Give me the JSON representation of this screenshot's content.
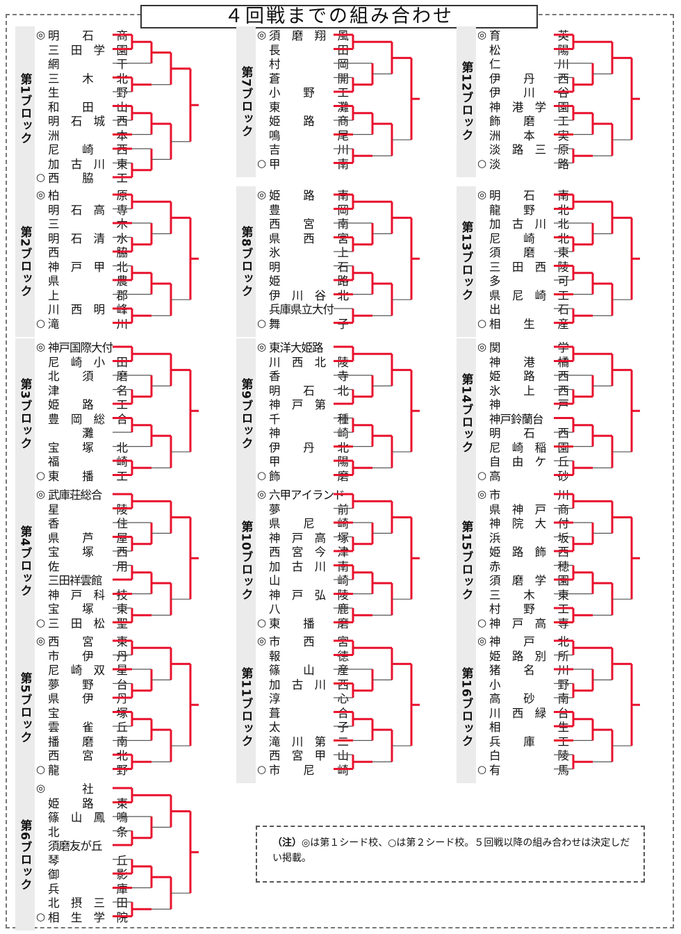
{
  "title": "４回戦までの組み合わせ",
  "note": {
    "head": "（注）",
    "text": "◎は第１シード校、○は第２シード校。５回戦以降の組み合わせは決定しだい掲載。"
  },
  "blocks": [
    {
      "label": "第1ブロック",
      "teams": [
        {
          "seed": "◎",
          "name": "明石商",
          "win": 1
        },
        {
          "seed": "",
          "name": "三田学園",
          "win": 1
        },
        {
          "seed": "",
          "name": "網干",
          "win": 0
        },
        {
          "seed": "",
          "name": "三木北",
          "win": 1
        },
        {
          "seed": "",
          "name": "生野",
          "win": 0
        },
        {
          "seed": "",
          "name": "和田山",
          "win": 1
        },
        {
          "seed": "",
          "name": "明石城西",
          "win": 0
        },
        {
          "seed": "",
          "name": "洲本",
          "win": 1
        },
        {
          "seed": "",
          "name": "尼崎西",
          "win": 1
        },
        {
          "seed": "",
          "name": "加古川東",
          "win": 0
        },
        {
          "seed": "○",
          "name": "西脇工",
          "win": 1
        }
      ]
    },
    {
      "label": "第2ブロック",
      "teams": [
        {
          "seed": "◎",
          "name": "柏原",
          "win": 1
        },
        {
          "seed": "",
          "name": "明石高専",
          "win": 0
        },
        {
          "seed": "",
          "name": "三木",
          "win": 1
        },
        {
          "seed": "",
          "name": "明石清水",
          "win": 0
        },
        {
          "seed": "",
          "name": "西脇",
          "win": 1
        },
        {
          "seed": "",
          "name": "神戸甲北",
          "win": 0
        },
        {
          "seed": "",
          "name": "県農",
          "win": 1
        },
        {
          "seed": "",
          "name": "上郡",
          "win": 0
        },
        {
          "seed": "",
          "name": "川西明峰",
          "win": 1
        },
        {
          "seed": "○",
          "name": "滝川",
          "win": 1
        }
      ]
    },
    {
      "label": "第3ブロック",
      "teams": [
        {
          "seed": "◎",
          "name": "神戸国際大付",
          "win": 1
        },
        {
          "seed": "",
          "name": "尼崎小田",
          "win": 1
        },
        {
          "seed": "",
          "name": "北須磨",
          "win": 0
        },
        {
          "seed": "",
          "name": "津名",
          "win": 0
        },
        {
          "seed": "",
          "name": "姫路工",
          "win": 1
        },
        {
          "seed": "",
          "name": "豊岡総合",
          "win": 1
        },
        {
          "seed": "",
          "name": "灘",
          "win": 0
        },
        {
          "seed": "",
          "name": "宝塚北",
          "win": 0
        },
        {
          "seed": "",
          "name": "福崎",
          "win": 1
        },
        {
          "seed": "○",
          "name": "東播工",
          "win": 1
        }
      ]
    },
    {
      "label": "第4ブロック",
      "teams": [
        {
          "seed": "◎",
          "name": "武庫荘総合",
          "win": 1
        },
        {
          "seed": "",
          "name": "星陵",
          "win": 1
        },
        {
          "seed": "",
          "name": "香住",
          "win": 0
        },
        {
          "seed": "",
          "name": "県芦屋",
          "win": 1
        },
        {
          "seed": "",
          "name": "宝塚西",
          "win": 0
        },
        {
          "seed": "",
          "name": "佐用",
          "win": 0
        },
        {
          "seed": "",
          "name": "三田祥雲館",
          "win": 1
        },
        {
          "seed": "",
          "name": "神戸科技",
          "win": 1
        },
        {
          "seed": "",
          "name": "宝塚東",
          "win": 0
        },
        {
          "seed": "○",
          "name": "三田松聖",
          "win": 1
        }
      ]
    },
    {
      "label": "第5ブロック",
      "teams": [
        {
          "seed": "◎",
          "name": "西宮東",
          "win": 1
        },
        {
          "seed": "",
          "name": "市伊丹",
          "win": 0
        },
        {
          "seed": "",
          "name": "尼崎双星",
          "win": 1
        },
        {
          "seed": "",
          "name": "夢野台",
          "win": 0
        },
        {
          "seed": "",
          "name": "県伊丹",
          "win": 1
        },
        {
          "seed": "",
          "name": "宝塚",
          "win": 1
        },
        {
          "seed": "",
          "name": "雲雀丘",
          "win": 0
        },
        {
          "seed": "",
          "name": "播磨南",
          "win": 0
        },
        {
          "seed": "",
          "name": "西宮北",
          "win": 1
        },
        {
          "seed": "○",
          "name": "龍野",
          "win": 1
        }
      ]
    },
    {
      "label": "第6ブロック",
      "teams": [
        {
          "seed": "◎",
          "name": "社",
          "win": 1
        },
        {
          "seed": "",
          "name": "姫路東",
          "win": 1
        },
        {
          "seed": "",
          "name": "篠山鳳鳴",
          "win": 0
        },
        {
          "seed": "",
          "name": "北条",
          "win": 0
        },
        {
          "seed": "",
          "name": "須磨友が丘",
          "win": 1
        },
        {
          "seed": "",
          "name": "琴丘",
          "win": 0
        },
        {
          "seed": "",
          "name": "御影",
          "win": 1
        },
        {
          "seed": "",
          "name": "兵庫",
          "win": 1
        },
        {
          "seed": "",
          "name": "北摂三田",
          "win": 0
        },
        {
          "seed": "○",
          "name": "相生学院",
          "win": 1
        }
      ]
    },
    {
      "label": "第7ブロック",
      "teams": [
        {
          "seed": "◎",
          "name": "須磨翔風",
          "win": 1
        },
        {
          "seed": "",
          "name": "長田",
          "win": 1
        },
        {
          "seed": "",
          "name": "村岡",
          "win": 0
        },
        {
          "seed": "",
          "name": "蒼開",
          "win": 0
        },
        {
          "seed": "",
          "name": "小野工",
          "win": 1
        },
        {
          "seed": "",
          "name": "東灘",
          "win": 1
        },
        {
          "seed": "",
          "name": "姫路商",
          "win": 0
        },
        {
          "seed": "",
          "name": "鳴尾",
          "win": 1
        },
        {
          "seed": "",
          "name": "吉川",
          "win": 0
        },
        {
          "seed": "○",
          "name": "甲南",
          "win": 1
        }
      ]
    },
    {
      "label": "第8ブロック",
      "teams": [
        {
          "seed": "◎",
          "name": "姫路南",
          "win": 1
        },
        {
          "seed": "",
          "name": "豊岡",
          "win": 1
        },
        {
          "seed": "",
          "name": "西宮南",
          "win": 0
        },
        {
          "seed": "",
          "name": "県西宮",
          "win": 1
        },
        {
          "seed": "",
          "name": "氷上",
          "win": 0
        },
        {
          "seed": "",
          "name": "明石",
          "win": 0
        },
        {
          "seed": "",
          "name": "姫路",
          "win": 1
        },
        {
          "seed": "",
          "name": "伊川谷北",
          "win": 1
        },
        {
          "seed": "",
          "name": "兵庫県立大付",
          "win": 0
        },
        {
          "seed": "○",
          "name": "舞子",
          "win": 1
        }
      ]
    },
    {
      "label": "第9ブロック",
      "teams": [
        {
          "seed": "◎",
          "name": "東洋大姫路",
          "win": 1
        },
        {
          "seed": "",
          "name": "川西北陵",
          "win": 1
        },
        {
          "seed": "",
          "name": "香寺",
          "win": 0
        },
        {
          "seed": "",
          "name": "明石北",
          "win": 0
        },
        {
          "seed": "",
          "name": "神戸第一",
          "win": 1
        },
        {
          "seed": "",
          "name": "千種",
          "win": 0
        },
        {
          "seed": "",
          "name": "神崎",
          "win": 0
        },
        {
          "seed": "",
          "name": "伊丹北",
          "win": 1
        },
        {
          "seed": "",
          "name": "甲陽",
          "win": 1
        },
        {
          "seed": "○",
          "name": "飾磨",
          "win": 1
        }
      ]
    },
    {
      "label": "第10ブロック",
      "teams": [
        {
          "seed": "◎",
          "name": "六甲アイランド",
          "win": 1
        },
        {
          "seed": "",
          "name": "夢前",
          "win": 0
        },
        {
          "seed": "",
          "name": "県尼崎",
          "win": 1
        },
        {
          "seed": "",
          "name": "神戸高塚",
          "win": 0
        },
        {
          "seed": "",
          "name": "西宮今津",
          "win": 1
        },
        {
          "seed": "",
          "name": "加古川南",
          "win": 1
        },
        {
          "seed": "",
          "name": "山崎",
          "win": 0
        },
        {
          "seed": "",
          "name": "神戸弘陵",
          "win": 1
        },
        {
          "seed": "",
          "name": "八鹿",
          "win": 0
        },
        {
          "seed": "○",
          "name": "東播磨",
          "win": 1
        }
      ]
    },
    {
      "label": "第11ブロック",
      "teams": [
        {
          "seed": "◎",
          "name": "市西宮",
          "win": 1
        },
        {
          "seed": "",
          "name": "報徳",
          "win": 1
        },
        {
          "seed": "",
          "name": "篠山産",
          "win": 0
        },
        {
          "seed": "",
          "name": "加古川西",
          "win": 1
        },
        {
          "seed": "",
          "name": "淳心",
          "win": 0
        },
        {
          "seed": "",
          "name": "葺合",
          "win": 1
        },
        {
          "seed": "",
          "name": "太子",
          "win": 0
        },
        {
          "seed": "",
          "name": "滝川第二",
          "win": 1
        },
        {
          "seed": "",
          "name": "西宮甲山",
          "win": 0
        },
        {
          "seed": "○",
          "name": "市尼崎",
          "win": 1
        }
      ]
    },
    {
      "label": "第12ブロック",
      "teams": [
        {
          "seed": "◎",
          "name": "育英",
          "win": 1
        },
        {
          "seed": "",
          "name": "松陽",
          "win": 1
        },
        {
          "seed": "",
          "name": "仁川",
          "win": 0
        },
        {
          "seed": "",
          "name": "伊丹西",
          "win": 0
        },
        {
          "seed": "",
          "name": "伊川谷",
          "win": 1
        },
        {
          "seed": "",
          "name": "神港学園",
          "win": 1
        },
        {
          "seed": "",
          "name": "飾磨工",
          "win": 0
        },
        {
          "seed": "",
          "name": "洲本実",
          "win": 1
        },
        {
          "seed": "",
          "name": "淡路三原",
          "win": 0
        },
        {
          "seed": "○",
          "name": "淡路",
          "win": 0
        }
      ]
    },
    {
      "label": "第13ブロック",
      "teams": [
        {
          "seed": "◎",
          "name": "明石南",
          "win": 1
        },
        {
          "seed": "",
          "name": "龍野北",
          "win": 1
        },
        {
          "seed": "",
          "name": "加古川北",
          "win": 0
        },
        {
          "seed": "",
          "name": "尼崎北",
          "win": 1
        },
        {
          "seed": "",
          "name": "須磨東",
          "win": 0
        },
        {
          "seed": "",
          "name": "三田西陵",
          "win": 1
        },
        {
          "seed": "",
          "name": "多可",
          "win": 0
        },
        {
          "seed": "",
          "name": "県尼崎工",
          "win": 1
        },
        {
          "seed": "",
          "name": "出石",
          "win": 0
        },
        {
          "seed": "○",
          "name": "相生産",
          "win": 1
        }
      ]
    },
    {
      "label": "第14ブロック",
      "teams": [
        {
          "seed": "◎",
          "name": "関学",
          "win": 1
        },
        {
          "seed": "",
          "name": "神港橘",
          "win": 1
        },
        {
          "seed": "",
          "name": "姫路西",
          "win": 0
        },
        {
          "seed": "",
          "name": "氷上西",
          "win": 0
        },
        {
          "seed": "",
          "name": "神戸",
          "win": 1
        },
        {
          "seed": "",
          "name": "神戸鈴蘭台",
          "win": 1
        },
        {
          "seed": "",
          "name": "明石西",
          "win": 0
        },
        {
          "seed": "",
          "name": "尼崎稲園",
          "win": 1
        },
        {
          "seed": "",
          "name": "自由ケ丘",
          "win": 0
        },
        {
          "seed": "○",
          "name": "高砂",
          "win": 1
        }
      ]
    },
    {
      "label": "第15ブロック",
      "teams": [
        {
          "seed": "◎",
          "name": "市川",
          "win": 1
        },
        {
          "seed": "",
          "name": "県神戸商",
          "win": 0
        },
        {
          "seed": "",
          "name": "神院大付",
          "win": 1
        },
        {
          "seed": "",
          "name": "浜坂",
          "win": 0
        },
        {
          "seed": "",
          "name": "姫路飾西",
          "win": 1
        },
        {
          "seed": "",
          "name": "赤穂",
          "win": 0
        },
        {
          "seed": "",
          "name": "須磨学園",
          "win": 1
        },
        {
          "seed": "",
          "name": "三木東",
          "win": 0
        },
        {
          "seed": "",
          "name": "村野工",
          "win": 1
        },
        {
          "seed": "○",
          "name": "神戸高専",
          "win": 1
        }
      ]
    },
    {
      "label": "第16ブロック",
      "teams": [
        {
          "seed": "◎",
          "name": "神戸北",
          "win": 1
        },
        {
          "seed": "",
          "name": "姫路別所",
          "win": 0
        },
        {
          "seed": "",
          "name": "猪名川",
          "win": 1
        },
        {
          "seed": "",
          "name": "小野",
          "win": 0
        },
        {
          "seed": "",
          "name": "高砂南",
          "win": 0
        },
        {
          "seed": "",
          "name": "川西緑台",
          "win": 1
        },
        {
          "seed": "",
          "name": "相生",
          "win": 1
        },
        {
          "seed": "",
          "name": "兵庫工",
          "win": 1
        },
        {
          "seed": "",
          "name": "白陵",
          "win": 0
        },
        {
          "seed": "○",
          "name": "有馬",
          "win": 0
        }
      ]
    }
  ],
  "colors": {
    "win": "#e8112d",
    "lose": "#555555",
    "label_bg": "#ebebeb"
  }
}
